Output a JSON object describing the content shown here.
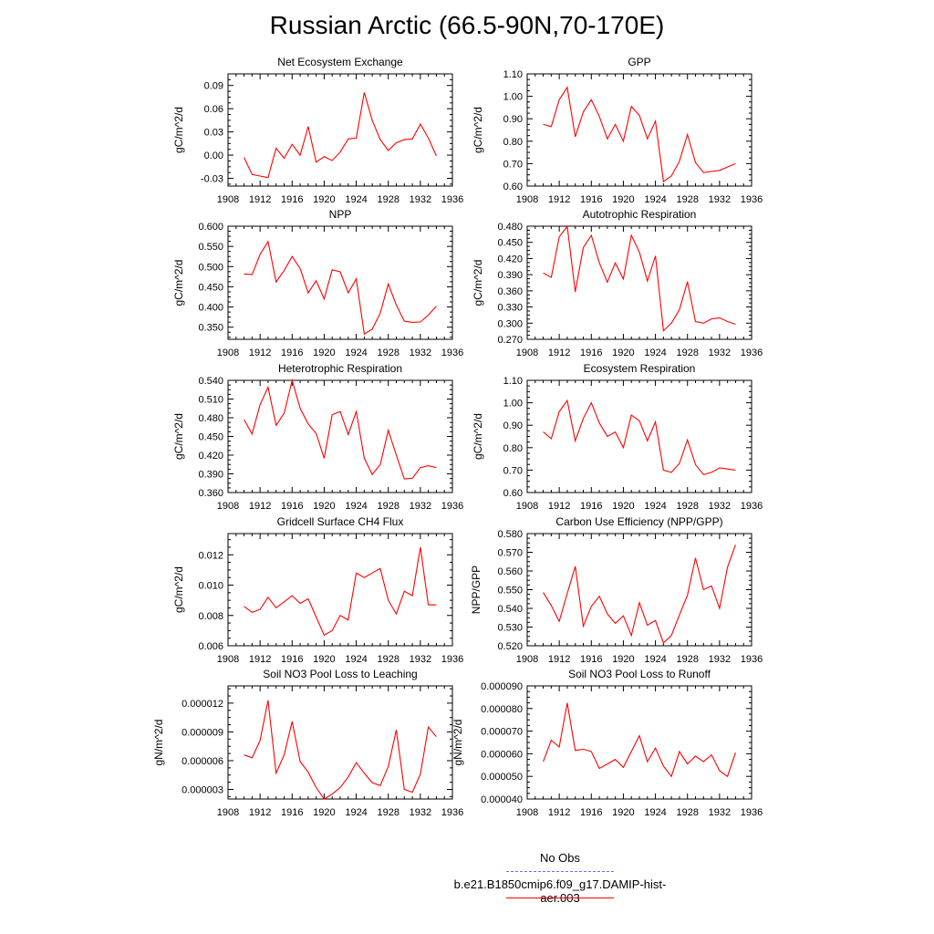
{
  "title": "Russian Arctic (66.5-90N,70-170E)",
  "colors": {
    "model": "#ff0000",
    "obs": "#6a6aff",
    "axis": "#000000"
  },
  "legend": {
    "obs_label": "No Obs",
    "model_label": "b.e21.B1850cmip6.f09_g17.DAMIP-hist-aer.003"
  },
  "chart_data": [
    {
      "type": "line",
      "title": "Net Ecosystem Exchange",
      "xlabel": "",
      "ylabel": "gC/m^2/d",
      "xlim": [
        1908,
        1936
      ],
      "ylim": [
        -0.04,
        0.105
      ],
      "x_ticks": [
        1908,
        1912,
        1916,
        1920,
        1924,
        1928,
        1932,
        1936
      ],
      "x_tick_labels": [
        "1908",
        "1912",
        "1916",
        "1920",
        "1924",
        "1928",
        "1932",
        "1936"
      ],
      "y_ticks": [
        -0.03,
        0,
        0.03,
        0.06,
        0.09
      ],
      "y_tick_labels": [
        "-0.03",
        "0.00",
        "0.03",
        "0.06",
        "0.09"
      ],
      "x": [
        1910,
        1911,
        1912,
        1913,
        1914,
        1915,
        1916,
        1917,
        1918,
        1919,
        1920,
        1921,
        1922,
        1923,
        1924,
        1925,
        1926,
        1927,
        1928,
        1929,
        1930,
        1931,
        1932,
        1933,
        1934
      ],
      "series": [
        {
          "values": [
            -0.003,
            -0.025,
            -0.027,
            -0.029,
            0.009,
            -0.004,
            0.014,
            0.0,
            0.037,
            -0.009,
            -0.002,
            -0.007,
            0.004,
            0.021,
            0.022,
            0.081,
            0.045,
            0.02,
            0.006,
            0.016,
            0.02,
            0.021,
            0.04,
            0.022,
            -0.001
          ]
        }
      ]
    },
    {
      "type": "line",
      "title": "GPP",
      "xlabel": "",
      "ylabel": "gC/m^2/d",
      "xlim": [
        1908,
        1936
      ],
      "ylim": [
        0.6,
        1.1
      ],
      "x_ticks": [
        1908,
        1912,
        1916,
        1920,
        1924,
        1928,
        1932,
        1936
      ],
      "x_tick_labels": [
        "1908",
        "1912",
        "1916",
        "1920",
        "1924",
        "1928",
        "1932",
        "1936"
      ],
      "y_ticks": [
        0.6,
        0.7,
        0.8,
        0.9,
        1.0,
        1.1
      ],
      "y_tick_labels": [
        "0.60",
        "0.70",
        "0.80",
        "0.90",
        "1.00",
        "1.10"
      ],
      "x": [
        1910,
        1911,
        1912,
        1913,
        1914,
        1915,
        1916,
        1917,
        1918,
        1919,
        1920,
        1921,
        1922,
        1923,
        1924,
        1925,
        1926,
        1927,
        1928,
        1929,
        1930,
        1931,
        1932,
        1933,
        1934
      ],
      "series": [
        {
          "values": [
            0.875,
            0.865,
            0.985,
            1.04,
            0.82,
            0.93,
            0.985,
            0.91,
            0.81,
            0.875,
            0.8,
            0.955,
            0.915,
            0.81,
            0.89,
            0.62,
            0.645,
            0.71,
            0.83,
            0.705,
            0.66,
            0.665,
            0.67,
            0.685,
            0.7
          ]
        }
      ]
    },
    {
      "type": "line",
      "title": "NPP",
      "xlabel": "",
      "ylabel": "gC/m^2/d",
      "xlim": [
        1908,
        1936
      ],
      "ylim": [
        0.32,
        0.6
      ],
      "x_ticks": [
        1908,
        1912,
        1916,
        1920,
        1924,
        1928,
        1932,
        1936
      ],
      "x_tick_labels": [
        "1908",
        "1912",
        "1916",
        "1920",
        "1924",
        "1928",
        "1932",
        "1936"
      ],
      "y_ticks": [
        0.35,
        0.4,
        0.45,
        0.5,
        0.55,
        0.6
      ],
      "y_tick_labels": [
        "0.350",
        "0.400",
        "0.450",
        "0.500",
        "0.550",
        "0.600"
      ],
      "x": [
        1910,
        1911,
        1912,
        1913,
        1914,
        1915,
        1916,
        1917,
        1918,
        1919,
        1920,
        1921,
        1922,
        1923,
        1924,
        1925,
        1926,
        1927,
        1928,
        1929,
        1930,
        1931,
        1932,
        1933,
        1934
      ],
      "series": [
        {
          "values": [
            0.482,
            0.48,
            0.53,
            0.562,
            0.462,
            0.49,
            0.525,
            0.495,
            0.435,
            0.465,
            0.42,
            0.492,
            0.487,
            0.435,
            0.47,
            0.333,
            0.345,
            0.385,
            0.457,
            0.405,
            0.365,
            0.362,
            0.363,
            0.38,
            0.402
          ]
        }
      ]
    },
    {
      "type": "line",
      "title": "Autotrophic Respiration",
      "xlabel": "",
      "ylabel": "gC/m^2/d",
      "xlim": [
        1908,
        1936
      ],
      "ylim": [
        0.27,
        0.48
      ],
      "x_ticks": [
        1908,
        1912,
        1916,
        1920,
        1924,
        1928,
        1932,
        1936
      ],
      "x_tick_labels": [
        "1908",
        "1912",
        "1916",
        "1920",
        "1924",
        "1928",
        "1932",
        "1936"
      ],
      "y_ticks": [
        0.27,
        0.3,
        0.33,
        0.36,
        0.39,
        0.42,
        0.45,
        0.48
      ],
      "y_tick_labels": [
        "0.270",
        "0.300",
        "0.330",
        "0.360",
        "0.390",
        "0.420",
        "0.450",
        "0.480"
      ],
      "x": [
        1910,
        1911,
        1912,
        1913,
        1914,
        1915,
        1916,
        1917,
        1918,
        1919,
        1920,
        1921,
        1922,
        1923,
        1924,
        1925,
        1926,
        1927,
        1928,
        1929,
        1930,
        1931,
        1932,
        1933,
        1934
      ],
      "series": [
        {
          "values": [
            0.393,
            0.385,
            0.46,
            0.48,
            0.358,
            0.44,
            0.463,
            0.412,
            0.376,
            0.412,
            0.382,
            0.463,
            0.432,
            0.378,
            0.425,
            0.286,
            0.3,
            0.325,
            0.377,
            0.303,
            0.3,
            0.308,
            0.31,
            0.303,
            0.298
          ]
        }
      ]
    },
    {
      "type": "line",
      "title": "Heterotrophic Respiration",
      "xlabel": "",
      "ylabel": "gC/m^2/d",
      "xlim": [
        1908,
        1936
      ],
      "ylim": [
        0.36,
        0.54
      ],
      "x_ticks": [
        1908,
        1912,
        1916,
        1920,
        1924,
        1928,
        1932,
        1936
      ],
      "x_tick_labels": [
        "1908",
        "1912",
        "1916",
        "1920",
        "1924",
        "1928",
        "1932",
        "1936"
      ],
      "y_ticks": [
        0.36,
        0.39,
        0.42,
        0.45,
        0.48,
        0.51,
        0.54
      ],
      "y_tick_labels": [
        "0.360",
        "0.390",
        "0.420",
        "0.450",
        "0.480",
        "0.510",
        "0.540"
      ],
      "x": [
        1910,
        1911,
        1912,
        1913,
        1914,
        1915,
        1916,
        1917,
        1918,
        1919,
        1920,
        1921,
        1922,
        1923,
        1924,
        1925,
        1926,
        1927,
        1928,
        1929,
        1930,
        1931,
        1932,
        1933,
        1934
      ],
      "series": [
        {
          "values": [
            0.477,
            0.454,
            0.501,
            0.529,
            0.468,
            0.487,
            0.54,
            0.495,
            0.47,
            0.455,
            0.415,
            0.485,
            0.49,
            0.453,
            0.49,
            0.415,
            0.389,
            0.405,
            0.46,
            0.42,
            0.382,
            0.383,
            0.4,
            0.403,
            0.4
          ]
        }
      ]
    },
    {
      "type": "line",
      "title": "Ecosystem Respiration",
      "xlabel": "",
      "ylabel": "gC/m^2/d",
      "xlim": [
        1908,
        1936
      ],
      "ylim": [
        0.6,
        1.1
      ],
      "x_ticks": [
        1908,
        1912,
        1916,
        1920,
        1924,
        1928,
        1932,
        1936
      ],
      "x_tick_labels": [
        "1908",
        "1912",
        "1916",
        "1920",
        "1924",
        "1928",
        "1932",
        "1936"
      ],
      "y_ticks": [
        0.6,
        0.7,
        0.8,
        0.9,
        1.0,
        1.1
      ],
      "y_tick_labels": [
        "0.60",
        "0.70",
        "0.80",
        "0.90",
        "1.00",
        "1.10"
      ],
      "x": [
        1910,
        1911,
        1912,
        1913,
        1914,
        1915,
        1916,
        1917,
        1918,
        1919,
        1920,
        1921,
        1922,
        1923,
        1924,
        1925,
        1926,
        1927,
        1928,
        1929,
        1930,
        1931,
        1932,
        1933,
        1934
      ],
      "series": [
        {
          "values": [
            0.87,
            0.84,
            0.96,
            1.01,
            0.83,
            0.93,
            1.0,
            0.91,
            0.85,
            0.87,
            0.8,
            0.945,
            0.92,
            0.83,
            0.915,
            0.7,
            0.69,
            0.73,
            0.835,
            0.725,
            0.68,
            0.69,
            0.71,
            0.705,
            0.7
          ]
        }
      ]
    },
    {
      "type": "line",
      "title": "Gridcell Surface CH4 Flux",
      "xlabel": "",
      "ylabel": "gC/m^2/d",
      "xlim": [
        1908,
        1936
      ],
      "ylim": [
        0.006,
        0.0134
      ],
      "x_ticks": [
        1908,
        1912,
        1916,
        1920,
        1924,
        1928,
        1932,
        1936
      ],
      "x_tick_labels": [
        "1908",
        "1912",
        "1916",
        "1920",
        "1924",
        "1928",
        "1932",
        "1936"
      ],
      "y_ticks": [
        0.006,
        0.008,
        0.01,
        0.012
      ],
      "y_tick_labels": [
        "0.006",
        "0.008",
        "0.010",
        "0.012"
      ],
      "x": [
        1910,
        1911,
        1912,
        1913,
        1914,
        1915,
        1916,
        1917,
        1918,
        1919,
        1920,
        1921,
        1922,
        1923,
        1924,
        1925,
        1926,
        1927,
        1928,
        1929,
        1930,
        1931,
        1932,
        1933,
        1934
      ],
      "series": [
        {
          "values": [
            0.0086,
            0.0082,
            0.0084,
            0.0092,
            0.0085,
            0.0089,
            0.0093,
            0.0088,
            0.0091,
            0.0079,
            0.0067,
            0.007,
            0.008,
            0.0077,
            0.0108,
            0.0105,
            0.0108,
            0.0111,
            0.009,
            0.0081,
            0.0096,
            0.0093,
            0.0125,
            0.0087,
            0.0087
          ]
        }
      ]
    },
    {
      "type": "line",
      "title": "Carbon Use Efficiency (NPP/GPP)",
      "xlabel": "",
      "ylabel": "NPP/GPP",
      "xlim": [
        1908,
        1936
      ],
      "ylim": [
        0.52,
        0.58
      ],
      "x_ticks": [
        1908,
        1912,
        1916,
        1920,
        1924,
        1928,
        1932,
        1936
      ],
      "x_tick_labels": [
        "1908",
        "1912",
        "1916",
        "1920",
        "1924",
        "1928",
        "1932",
        "1936"
      ],
      "y_ticks": [
        0.52,
        0.53,
        0.54,
        0.55,
        0.56,
        0.57,
        0.58
      ],
      "y_tick_labels": [
        "0.520",
        "0.530",
        "0.540",
        "0.550",
        "0.560",
        "0.570",
        "0.580"
      ],
      "x": [
        1910,
        1911,
        1912,
        1913,
        1914,
        1915,
        1916,
        1917,
        1918,
        1919,
        1920,
        1921,
        1922,
        1923,
        1924,
        1925,
        1926,
        1927,
        1928,
        1929,
        1930,
        1931,
        1932,
        1933,
        1934
      ],
      "series": [
        {
          "values": [
            0.5485,
            0.5415,
            0.533,
            0.548,
            0.5625,
            0.5305,
            0.541,
            0.5465,
            0.537,
            0.532,
            0.536,
            0.5255,
            0.543,
            0.531,
            0.5335,
            0.5215,
            0.5255,
            0.5365,
            0.547,
            0.567,
            0.55,
            0.552,
            0.54,
            0.562,
            0.574
          ]
        }
      ]
    },
    {
      "type": "line",
      "title": "Soil NO3 Pool Loss to Leaching",
      "xlabel": "",
      "ylabel": "gN/m^2/d",
      "xlim": [
        1908,
        1936
      ],
      "ylim": [
        2e-06,
        1.38e-05
      ],
      "x_ticks": [
        1908,
        1912,
        1916,
        1920,
        1924,
        1928,
        1932,
        1936
      ],
      "x_tick_labels": [
        "1908",
        "1912",
        "1916",
        "1920",
        "1924",
        "1928",
        "1932",
        "1936"
      ],
      "y_ticks": [
        3e-06,
        6e-06,
        9e-06,
        1.2e-05
      ],
      "y_tick_labels": [
        "0.000003",
        "0.000006",
        "0.000009",
        "0.000012"
      ],
      "x": [
        1910,
        1911,
        1912,
        1913,
        1914,
        1915,
        1916,
        1917,
        1918,
        1919,
        1920,
        1921,
        1922,
        1923,
        1924,
        1925,
        1926,
        1927,
        1928,
        1929,
        1930,
        1931,
        1932,
        1933,
        1934
      ],
      "series": [
        {
          "values": [
            6.6e-06,
            6.3e-06,
            8.1e-06,
            1.23e-05,
            4.7e-06,
            6.6e-06,
            1.01e-05,
            5.9e-06,
            4.8e-06,
            3.2e-06,
            2e-06,
            2.5e-06,
            3.2e-06,
            4.3e-06,
            5.8e-06,
            4.7e-06,
            3.7e-06,
            3.4e-06,
            5.4e-06,
            9.2e-06,
            3e-06,
            2.7e-06,
            4.6e-06,
            9.5e-06,
            8.5e-06
          ]
        }
      ]
    },
    {
      "type": "line",
      "title": "Soil NO3 Pool Loss to Runoff",
      "xlabel": "",
      "ylabel": "gN/m^2/d",
      "xlim": [
        1908,
        1936
      ],
      "ylim": [
        4e-05,
        9e-05
      ],
      "x_ticks": [
        1908,
        1912,
        1916,
        1920,
        1924,
        1928,
        1932,
        1936
      ],
      "x_tick_labels": [
        "1908",
        "1912",
        "1916",
        "1920",
        "1924",
        "1928",
        "1932",
        "1936"
      ],
      "y_ticks": [
        4e-05,
        5e-05,
        6e-05,
        7e-05,
        8e-05,
        9e-05
      ],
      "y_tick_labels": [
        "0.000040",
        "0.000050",
        "0.000060",
        "0.000070",
        "0.000080",
        "0.000090"
      ],
      "x": [
        1910,
        1911,
        1912,
        1913,
        1914,
        1915,
        1916,
        1917,
        1918,
        1919,
        1920,
        1921,
        1922,
        1923,
        1924,
        1925,
        1926,
        1927,
        1928,
        1929,
        1930,
        1931,
        1932,
        1933,
        1934
      ],
      "series": [
        {
          "values": [
            5.65e-05,
            6.6e-05,
            6.3e-05,
            8.25e-05,
            6.15e-05,
            6.2e-05,
            6.1e-05,
            5.35e-05,
            5.55e-05,
            5.75e-05,
            5.4e-05,
            6.1e-05,
            6.8e-05,
            5.65e-05,
            6.25e-05,
            5.45e-05,
            5e-05,
            6.1e-05,
            5.55e-05,
            5.9e-05,
            5.65e-05,
            5.95e-05,
            5.25e-05,
            5e-05,
            6.05e-05
          ]
        }
      ]
    }
  ]
}
